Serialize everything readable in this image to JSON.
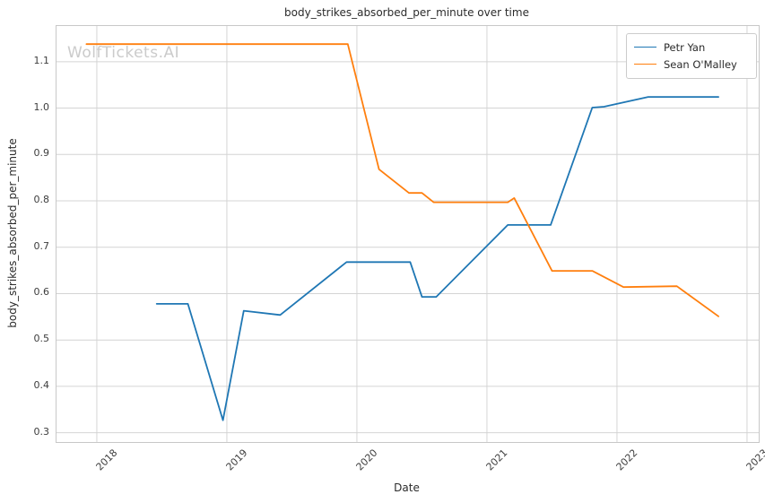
{
  "watermark": "WolfTickets.AI",
  "chart_data": {
    "type": "line",
    "title": "body_strikes_absorbed_per_minute over time",
    "xlabel": "Date",
    "ylabel": "body_strikes_absorbed_per_minute",
    "x_ticks": [
      2018,
      2019,
      2020,
      2021,
      2022,
      2023
    ],
    "y_ticks": [
      0.3,
      0.4,
      0.5,
      0.6,
      0.7,
      0.8,
      0.9,
      1.0,
      1.1
    ],
    "xlim": [
      2017.69,
      2023.09
    ],
    "ylim": [
      0.28,
      1.177
    ],
    "grid": true,
    "legend_position": "upper right",
    "series": [
      {
        "name": "Petr Yan",
        "color": "#1f77b4",
        "x": [
          2018.46,
          2018.7,
          2018.97,
          2019.13,
          2019.41,
          2019.92,
          2020.41,
          2020.5,
          2020.61,
          2021.16,
          2021.49,
          2021.81,
          2021.9,
          2022.24,
          2022.78
        ],
        "y": [
          0.578,
          0.578,
          0.327,
          0.563,
          0.554,
          0.668,
          0.668,
          0.593,
          0.593,
          0.748,
          0.748,
          1.001,
          1.003,
          1.024,
          1.024
        ]
      },
      {
        "name": "Sean O'Malley",
        "color": "#ff7f0e",
        "x": [
          2017.92,
          2019.93,
          2020.17,
          2020.4,
          2020.5,
          2020.59,
          2021.16,
          2021.21,
          2021.5,
          2021.81,
          2022.05,
          2022.46,
          2022.78
        ],
        "y": [
          1.138,
          1.138,
          0.868,
          0.817,
          0.817,
          0.797,
          0.797,
          0.806,
          0.649,
          0.649,
          0.614,
          0.616,
          0.551
        ]
      }
    ]
  }
}
